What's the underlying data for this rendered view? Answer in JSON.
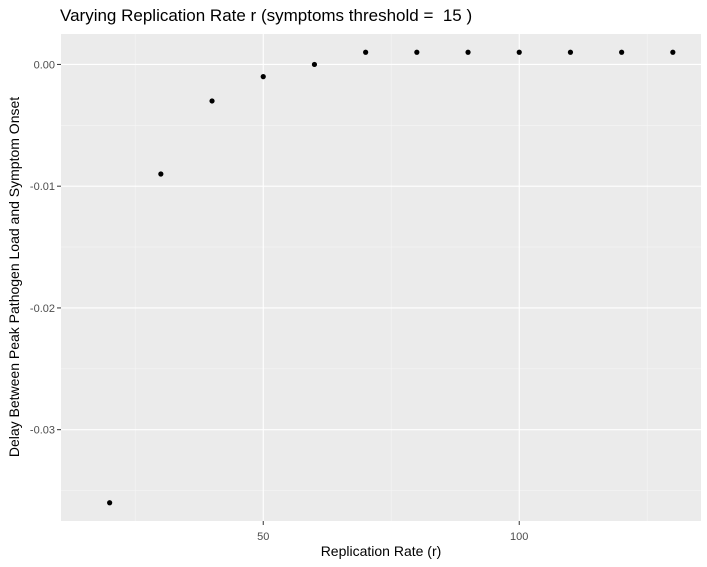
{
  "chart_data": {
    "type": "scatter",
    "title": "Varying Replication Rate r (symptoms threshold =  15 )",
    "xlabel": "Replication Rate (r)",
    "ylabel": "Delay Between Peak Pathogen Load and Symptom Onset",
    "xlim": [
      10.5,
      135.5
    ],
    "ylim": [
      -0.0375,
      0.0025
    ],
    "x_major_ticks": [
      50,
      100
    ],
    "x_minor_ticks": [
      25,
      75,
      125
    ],
    "y_major_ticks": [
      -0.03,
      -0.02,
      -0.01,
      0.0
    ],
    "y_minor_ticks": [
      -0.035,
      -0.025,
      -0.015,
      -0.005
    ],
    "x_tick_labels": [
      "50",
      "100"
    ],
    "y_tick_labels": [
      "-0.03",
      "-0.02",
      "-0.01",
      "0.00"
    ],
    "grid": true,
    "legend": "none",
    "points": [
      {
        "x": 20,
        "y": -0.036
      },
      {
        "x": 30,
        "y": -0.009
      },
      {
        "x": 40,
        "y": -0.003
      },
      {
        "x": 50,
        "y": -0.001
      },
      {
        "x": 60,
        "y": 0.0
      },
      {
        "x": 70,
        "y": 0.001
      },
      {
        "x": 80,
        "y": 0.001
      },
      {
        "x": 90,
        "y": 0.001
      },
      {
        "x": 100,
        "y": 0.001
      },
      {
        "x": 110,
        "y": 0.001
      },
      {
        "x": 120,
        "y": 0.001
      },
      {
        "x": 130,
        "y": 0.001
      }
    ],
    "colors": {
      "panel_background": "#ebebeb",
      "grid_major": "#ffffff",
      "grid_minor": "#f5f5f5",
      "point": "#000000",
      "tick_text": "#4d4d4d",
      "tick_mark": "#333333"
    }
  }
}
